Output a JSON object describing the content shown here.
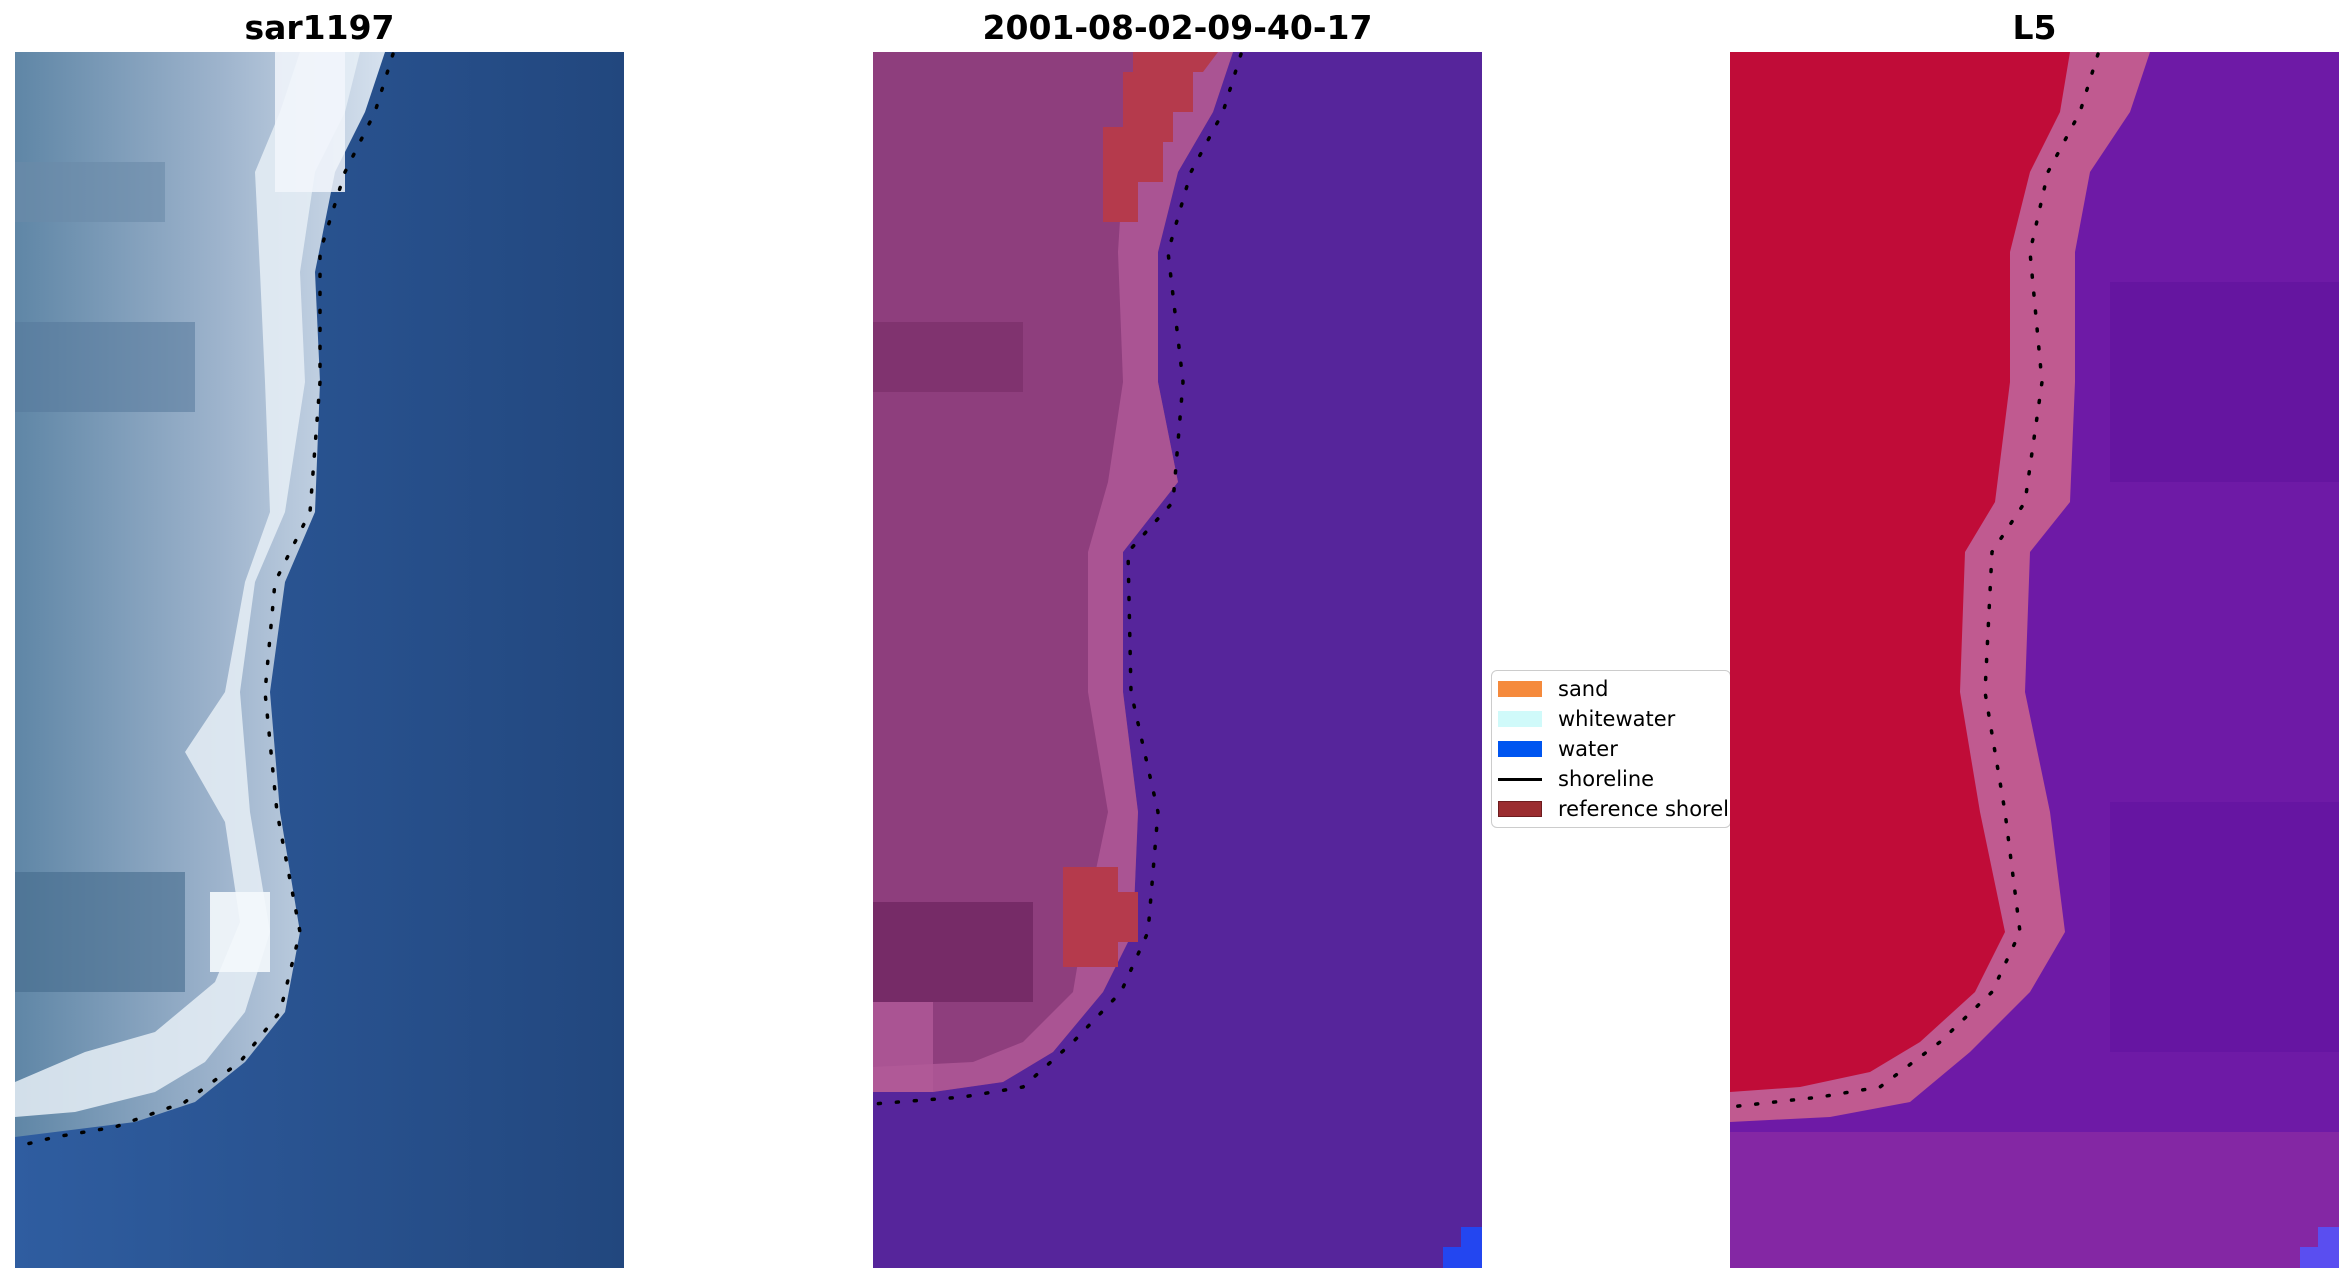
{
  "panels": [
    {
      "title": "sar1197",
      "image": "rgb satellite image",
      "shoreline_style": "dotted black"
    },
    {
      "title": "2001-08-02-09-40-17",
      "image": "classified image",
      "shoreline_style": "dotted black"
    },
    {
      "title": "L5",
      "image": "false-color index image",
      "shoreline_style": "dotted black"
    }
  ],
  "legend": {
    "items": [
      {
        "label": "sand",
        "color": "#f58a3c",
        "kind": "patch"
      },
      {
        "label": "whitewater",
        "color": "#d0fafa",
        "kind": "patch"
      },
      {
        "label": "water",
        "color": "#0055f0",
        "kind": "patch"
      },
      {
        "label": "shoreline",
        "color": "#000000",
        "kind": "line"
      },
      {
        "label": "reference shoreline",
        "color": "#9b2d30",
        "kind": "patch"
      }
    ]
  },
  "colors": {
    "rgb_land": "#7f9ab8",
    "rgb_water": "#2a4f8c",
    "class_land": "#8e3e7d",
    "class_water": "#56259b",
    "class_reference": "#b53a4c",
    "index_land": "#c00c38",
    "index_water": "#6e1aa6",
    "index_margin": "#c05a90",
    "corner_water": "#2346f0"
  }
}
